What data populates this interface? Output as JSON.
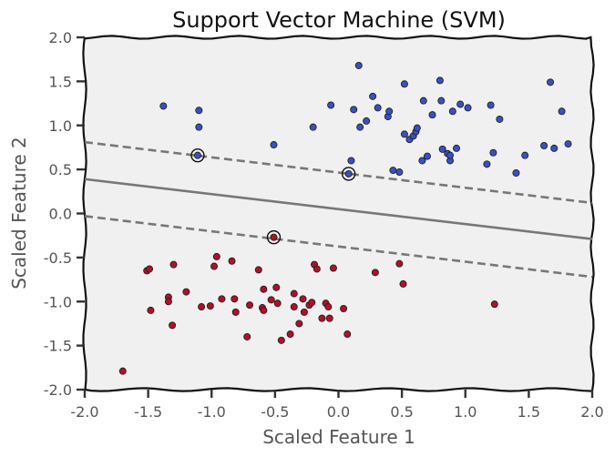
{
  "chart_data": {
    "type": "scatter",
    "title": "Support Vector Machine (SVM)",
    "xlabel": "Scaled Feature 1",
    "ylabel": "Scaled Feature 2",
    "xlim": [
      -2.0,
      2.0
    ],
    "ylim": [
      -2.0,
      2.0
    ],
    "xticks": [
      "-2.0",
      "-1.5",
      "-1.0",
      "-0.5",
      "0.0",
      "0.5",
      "1.0",
      "1.5",
      "2.0"
    ],
    "yticks": [
      "-2.0",
      "-1.5",
      "-1.0",
      "-0.5",
      "0.0",
      "0.5",
      "1.0",
      "1.5",
      "2.0"
    ],
    "grid": false,
    "background_color": "#f0f0f0",
    "decision_boundary": {
      "line": [
        [
          -2.0,
          0.39
        ],
        [
          2.0,
          -0.29
        ]
      ],
      "margin_upper": [
        [
          -2.0,
          0.81
        ],
        [
          2.0,
          0.12
        ]
      ],
      "margin_lower": [
        [
          -2.0,
          -0.03
        ],
        [
          2.0,
          -0.72
        ]
      ],
      "color": "#777777"
    },
    "series": [
      {
        "color": "#3a4fc0",
        "points": [
          [
            -1.38,
            1.22
          ],
          [
            -1.1,
            1.17
          ],
          [
            -1.1,
            0.98
          ],
          [
            -1.11,
            0.66
          ],
          [
            -0.51,
            0.78
          ],
          [
            -0.2,
            0.98
          ],
          [
            -0.06,
            1.23
          ],
          [
            0.08,
            0.45
          ],
          [
            0.1,
            0.6
          ],
          [
            0.12,
            1.18
          ],
          [
            0.16,
            1.68
          ],
          [
            0.17,
            0.98
          ],
          [
            0.22,
            1.05
          ],
          [
            0.27,
            1.33
          ],
          [
            0.31,
            1.2
          ],
          [
            0.39,
            1.1
          ],
          [
            0.4,
            1.16
          ],
          [
            0.43,
            0.49
          ],
          [
            0.48,
            0.47
          ],
          [
            0.52,
            0.9
          ],
          [
            0.52,
            1.47
          ],
          [
            0.56,
            0.84
          ],
          [
            0.59,
            0.88
          ],
          [
            0.61,
            0.93
          ],
          [
            0.62,
            0.97
          ],
          [
            0.66,
            0.6
          ],
          [
            0.67,
            1.28
          ],
          [
            0.7,
            0.65
          ],
          [
            0.74,
            1.12
          ],
          [
            0.8,
            1.51
          ],
          [
            0.81,
            1.28
          ],
          [
            0.82,
            0.73
          ],
          [
            0.86,
            0.68
          ],
          [
            0.88,
            0.6
          ],
          [
            0.88,
            0.66
          ],
          [
            0.9,
            1.16
          ],
          [
            0.93,
            0.74
          ],
          [
            0.96,
            1.24
          ],
          [
            1.02,
            1.2
          ],
          [
            1.17,
            0.56
          ],
          [
            1.2,
            1.23
          ],
          [
            1.22,
            0.69
          ],
          [
            1.27,
            1.07
          ],
          [
            1.4,
            0.46
          ],
          [
            1.47,
            0.66
          ],
          [
            1.62,
            0.77
          ],
          [
            1.67,
            1.49
          ],
          [
            1.7,
            0.74
          ],
          [
            1.76,
            1.16
          ],
          [
            1.81,
            0.79
          ]
        ]
      },
      {
        "color": "#b0102a",
        "points": [
          [
            -1.7,
            -1.79
          ],
          [
            -1.51,
            -0.65
          ],
          [
            -1.49,
            -0.63
          ],
          [
            -1.48,
            -1.1
          ],
          [
            -1.34,
            -0.95
          ],
          [
            -1.34,
            -1.0
          ],
          [
            -1.31,
            -1.27
          ],
          [
            -1.3,
            -0.58
          ],
          [
            -1.2,
            -0.89
          ],
          [
            -1.08,
            -1.06
          ],
          [
            -1.01,
            -1.05
          ],
          [
            -0.98,
            -0.6
          ],
          [
            -0.96,
            -0.49
          ],
          [
            -0.92,
            -0.97
          ],
          [
            -0.84,
            -0.54
          ],
          [
            -0.82,
            -0.97
          ],
          [
            -0.81,
            -1.12
          ],
          [
            -0.72,
            -1.4
          ],
          [
            -0.7,
            -1.04
          ],
          [
            -0.63,
            -0.64
          ],
          [
            -0.6,
            -1.07
          ],
          [
            -0.59,
            -0.86
          ],
          [
            -0.59,
            -1.1
          ],
          [
            -0.53,
            -0.98
          ],
          [
            -0.51,
            -0.27
          ],
          [
            -0.49,
            -0.84
          ],
          [
            -0.48,
            -1.02
          ],
          [
            -0.45,
            -1.44
          ],
          [
            -0.38,
            -1.37
          ],
          [
            -0.35,
            -1.06
          ],
          [
            -0.35,
            -0.91
          ],
          [
            -0.31,
            -1.25
          ],
          [
            -0.28,
            -0.97
          ],
          [
            -0.27,
            -1.12
          ],
          [
            -0.23,
            -1.04
          ],
          [
            -0.21,
            -1.01
          ],
          [
            -0.19,
            -0.58
          ],
          [
            -0.17,
            -0.63
          ],
          [
            -0.13,
            -1.19
          ],
          [
            -0.1,
            -1.02
          ],
          [
            -0.08,
            -1.06
          ],
          [
            -0.07,
            -1.19
          ],
          [
            -0.04,
            -0.62
          ],
          [
            0.04,
            -1.08
          ],
          [
            0.07,
            -1.37
          ],
          [
            0.29,
            -0.67
          ],
          [
            0.48,
            -0.57
          ],
          [
            0.51,
            -0.8
          ],
          [
            1.23,
            -1.03
          ]
        ]
      }
    ],
    "support_vectors": [
      [
        -1.11,
        0.66
      ],
      [
        0.08,
        0.45
      ],
      [
        -0.51,
        -0.27
      ]
    ]
  }
}
